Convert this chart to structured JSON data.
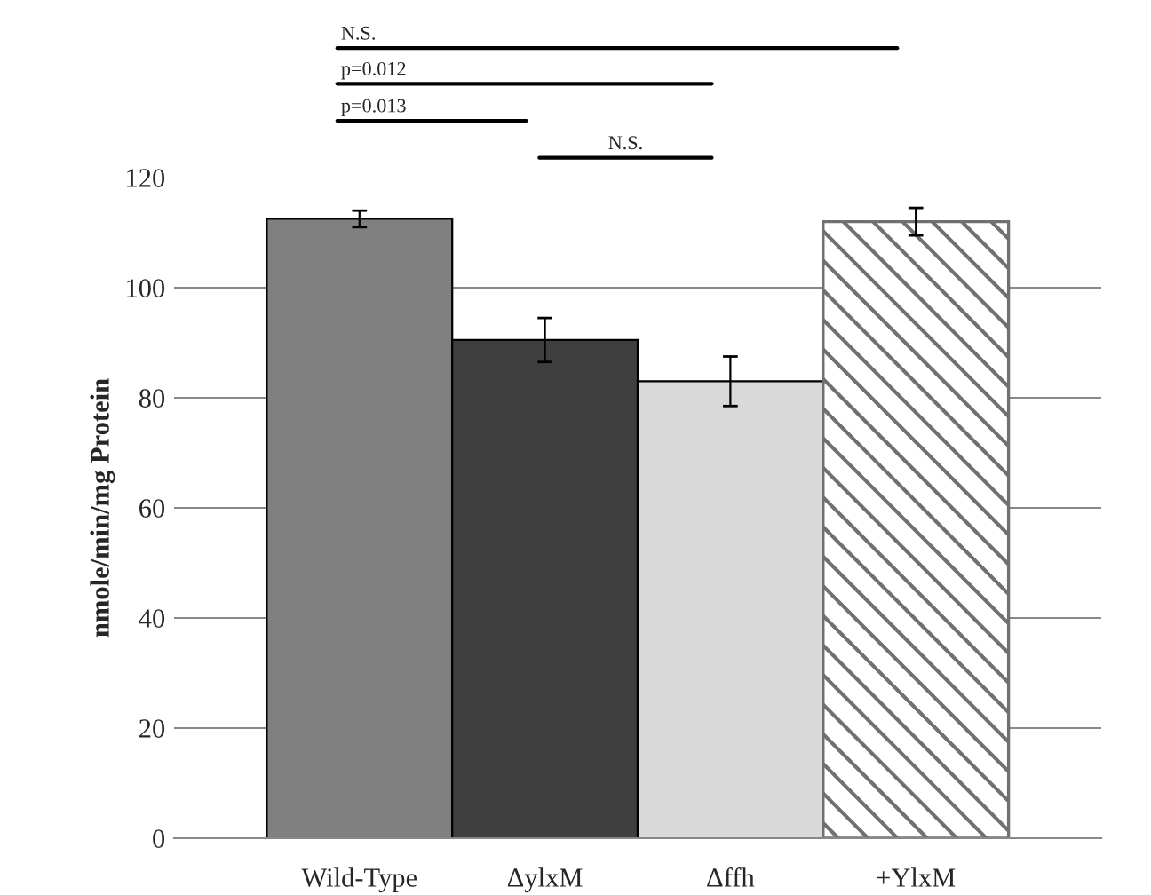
{
  "chart_data": {
    "type": "bar",
    "ylabel": "nmole/min/mg Protein",
    "categories": [
      "Wild-Type",
      "ΔylxM",
      "Δffh",
      "+YlxM"
    ],
    "values": [
      112.5,
      90.5,
      83,
      112
    ],
    "errors": [
      1.5,
      4,
      4.5,
      2.5
    ],
    "colors": [
      "#808080",
      "#3f3f3f",
      "#d9d9d9",
      "#707070"
    ],
    "ylim": [
      0,
      120
    ],
    "yticks": [
      0,
      20,
      40,
      60,
      80,
      100,
      120
    ],
    "grid": "y",
    "annotations": [
      "N.S.",
      "p=0.012",
      "p=0.013",
      "N.S."
    ]
  }
}
